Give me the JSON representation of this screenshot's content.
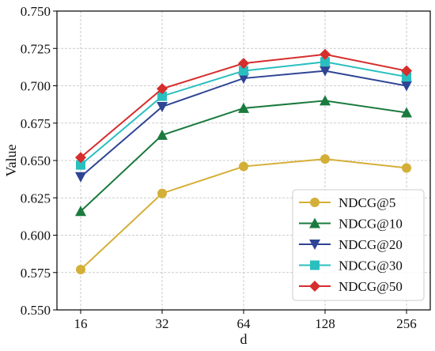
{
  "chart_data": {
    "type": "line",
    "xlabel": "d",
    "ylabel": "Value",
    "categories": [
      "16",
      "32",
      "64",
      "128",
      "256"
    ],
    "ylim": [
      0.55,
      0.75
    ],
    "yticks": [
      "0.550",
      "0.575",
      "0.600",
      "0.625",
      "0.650",
      "0.675",
      "0.700",
      "0.725",
      "0.750"
    ],
    "grid": true,
    "legend_position": "bottom-right",
    "series": [
      {
        "name": "NDCG@5",
        "values": [
          0.577,
          0.628,
          0.646,
          0.651,
          0.645
        ],
        "color": "#D4AF37",
        "marker": "circle"
      },
      {
        "name": "NDCG@10",
        "values": [
          0.616,
          0.667,
          0.685,
          0.69,
          0.682
        ],
        "color": "#1B7A3E",
        "marker": "triangle-up"
      },
      {
        "name": "NDCG@20",
        "values": [
          0.639,
          0.686,
          0.705,
          0.71,
          0.7
        ],
        "color": "#2E4494",
        "marker": "triangle-down"
      },
      {
        "name": "NDCG@30",
        "values": [
          0.647,
          0.693,
          0.71,
          0.716,
          0.706
        ],
        "color": "#2ABFBF",
        "marker": "square"
      },
      {
        "name": "NDCG@50",
        "values": [
          0.652,
          0.698,
          0.715,
          0.721,
          0.71
        ],
        "color": "#D62D2D",
        "marker": "diamond"
      }
    ]
  }
}
